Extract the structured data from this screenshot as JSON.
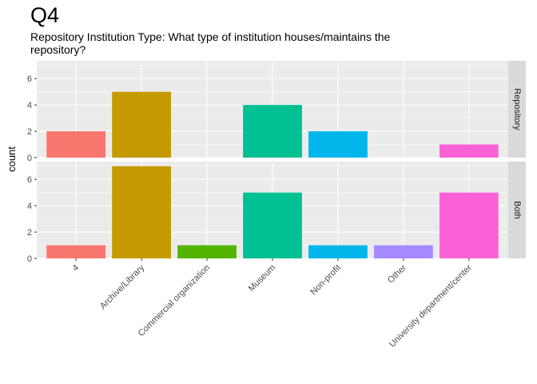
{
  "title": "Q4",
  "subtitle": "Repository Institution Type: What type of institution houses/maintains the repository?",
  "chart_data": {
    "type": "bar",
    "title": "Q4",
    "subtitle": "Repository Institution Type: What type of institution houses/maintains the repository?",
    "xlabel": "",
    "ylabel": "count",
    "ylim": [
      0,
      7.35
    ],
    "yticks": [
      0,
      2,
      4,
      6
    ],
    "grid": true,
    "categories": [
      "4",
      "Archive/Library",
      "Commercial organization",
      "Museum",
      "Non-profit",
      "Other",
      "University department/center"
    ],
    "colors": [
      "#F8766D",
      "#C49A00",
      "#53B400",
      "#00C094",
      "#00B6EB",
      "#A58AFF",
      "#FB61D7"
    ],
    "facets": [
      {
        "name": "Repository",
        "values": [
          2,
          5,
          0,
          4,
          2,
          0,
          1
        ]
      },
      {
        "name": "Both",
        "values": [
          1,
          7,
          1,
          5,
          1,
          1,
          5
        ]
      }
    ]
  }
}
